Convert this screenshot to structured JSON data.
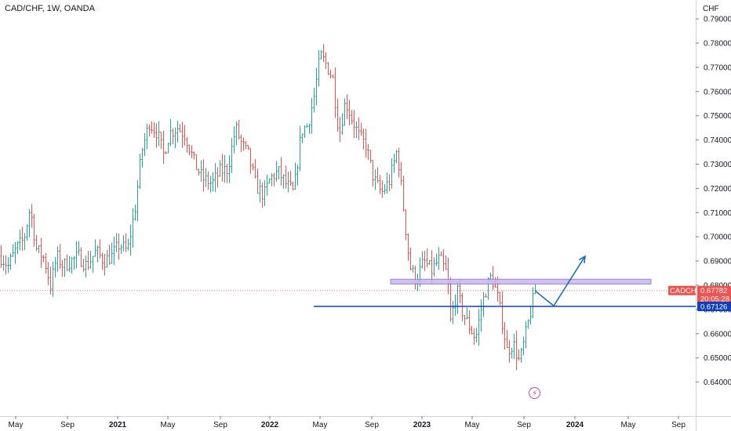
{
  "symbol_title": "CAD/CHF, 1W, OANDA",
  "currency_label": "CHF",
  "colors": {
    "bull": "#26a69a",
    "bear": "#ef5350",
    "zone_fill": "#c9b6f3",
    "zone_stroke": "#8e6fd6",
    "line_blue": "#0d3fbf",
    "price_tag": "#ef5350",
    "line_tag": "#0d3fbf",
    "projection": "#1565c0"
  },
  "price_tag": {
    "symbol": "CADCHF",
    "price": "0.67782",
    "countdown": "20:05:28"
  },
  "horizontal_line": {
    "label": "0.67126",
    "value": 0.67126
  },
  "zone": {
    "top": 0.6825,
    "bottom": 0.6805,
    "start_week": 498,
    "end_week": 830
  },
  "projection_path": [
    [
      683,
      0.6775
    ],
    [
      706,
      0.6715
    ],
    [
      746,
      0.692
    ]
  ],
  "bolt_icon": "lightning-icon",
  "chart_data": {
    "type": "ohlc-bar",
    "symbol": "CAD/CHF",
    "timeframe": "1W",
    "source": "OANDA",
    "ylim": [
      0.63,
      0.792
    ],
    "y_ticks": [
      "0.79000",
      "0.78000",
      "0.77000",
      "0.76000",
      "0.75000",
      "0.74000",
      "0.73000",
      "0.72000",
      "0.71000",
      "0.70000",
      "0.69000",
      "0.68000",
      "0.67000",
      "0.66000",
      "0.65000",
      "0.64000"
    ],
    "x_ticks": [
      {
        "label": "May",
        "year": false,
        "at": 20
      },
      {
        "label": "Sep",
        "year": false,
        "at": 86
      },
      {
        "label": "2021",
        "year": true,
        "at": 150
      },
      {
        "label": "May",
        "year": false,
        "at": 214
      },
      {
        "label": "Sep",
        "year": false,
        "at": 281
      },
      {
        "label": "2022",
        "year": true,
        "at": 344
      },
      {
        "label": "May",
        "year": false,
        "at": 408
      },
      {
        "label": "Sep",
        "year": false,
        "at": 474
      },
      {
        "label": "2023",
        "year": true,
        "at": 538
      },
      {
        "label": "May",
        "year": false,
        "at": 602
      },
      {
        "label": "Sep",
        "year": false,
        "at": 668
      },
      {
        "label": "2024",
        "year": true,
        "at": 733
      },
      {
        "label": "May",
        "year": false,
        "at": 801
      },
      {
        "label": "Sep",
        "year": false,
        "at": 865
      }
    ],
    "series_close_waypoints": [
      [
        0,
        0.692
      ],
      [
        10,
        0.688
      ],
      [
        20,
        0.695
      ],
      [
        30,
        0.699
      ],
      [
        38,
        0.712
      ],
      [
        46,
        0.695
      ],
      [
        56,
        0.691
      ],
      [
        64,
        0.68
      ],
      [
        72,
        0.692
      ],
      [
        80,
        0.688
      ],
      [
        90,
        0.69
      ],
      [
        100,
        0.692
      ],
      [
        110,
        0.688
      ],
      [
        122,
        0.694
      ],
      [
        132,
        0.69
      ],
      [
        142,
        0.692
      ],
      [
        152,
        0.697
      ],
      [
        162,
        0.694
      ],
      [
        172,
        0.712
      ],
      [
        180,
        0.735
      ],
      [
        190,
        0.747
      ],
      [
        200,
        0.743
      ],
      [
        208,
        0.734
      ],
      [
        216,
        0.743
      ],
      [
        226,
        0.745
      ],
      [
        236,
        0.742
      ],
      [
        248,
        0.73
      ],
      [
        258,
        0.724
      ],
      [
        270,
        0.722
      ],
      [
        280,
        0.727
      ],
      [
        290,
        0.728
      ],
      [
        300,
        0.745
      ],
      [
        308,
        0.738
      ],
      [
        316,
        0.734
      ],
      [
        326,
        0.721
      ],
      [
        336,
        0.717
      ],
      [
        344,
        0.724
      ],
      [
        354,
        0.727
      ],
      [
        364,
        0.722
      ],
      [
        374,
        0.718
      ],
      [
        384,
        0.744
      ],
      [
        392,
        0.746
      ],
      [
        400,
        0.758
      ],
      [
        408,
        0.775
      ],
      [
        416,
        0.771
      ],
      [
        424,
        0.765
      ],
      [
        432,
        0.742
      ],
      [
        440,
        0.756
      ],
      [
        448,
        0.749
      ],
      [
        458,
        0.741
      ],
      [
        466,
        0.738
      ],
      [
        476,
        0.724
      ],
      [
        486,
        0.718
      ],
      [
        496,
        0.723
      ],
      [
        506,
        0.736
      ],
      [
        514,
        0.712
      ],
      [
        522,
        0.688
      ],
      [
        530,
        0.682
      ],
      [
        540,
        0.69
      ],
      [
        550,
        0.686
      ],
      [
        560,
        0.691
      ],
      [
        570,
        0.684
      ],
      [
        574,
        0.665
      ],
      [
        582,
        0.678
      ],
      [
        590,
        0.668
      ],
      [
        598,
        0.663
      ],
      [
        606,
        0.658
      ],
      [
        614,
        0.672
      ],
      [
        620,
        0.679
      ],
      [
        626,
        0.684
      ],
      [
        634,
        0.675
      ],
      [
        640,
        0.665
      ],
      [
        646,
        0.653
      ],
      [
        654,
        0.656
      ],
      [
        662,
        0.648
      ],
      [
        670,
        0.66
      ],
      [
        678,
        0.672
      ],
      [
        682,
        0.678
      ]
    ],
    "last_bar_week": 682
  }
}
